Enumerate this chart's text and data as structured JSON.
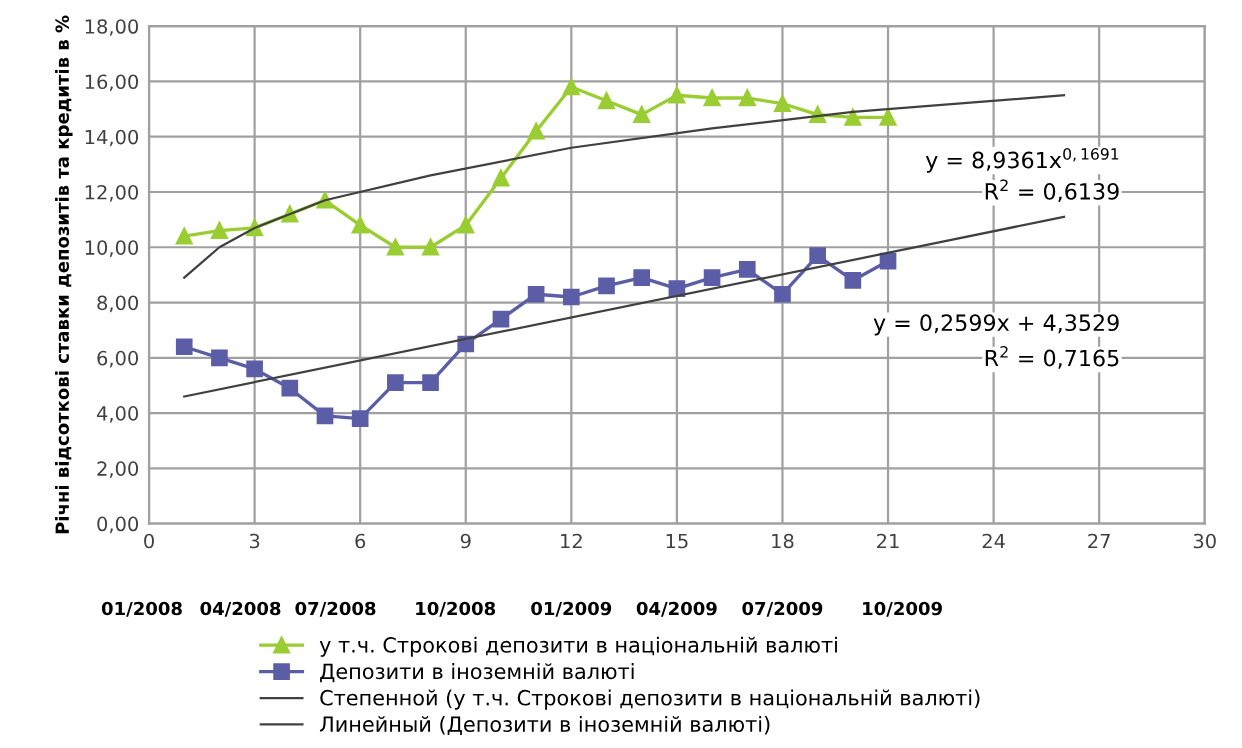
{
  "chart_data": {
    "type": "line",
    "ylabel": "Річні відсоткові ставки депозитів та кредитів в %",
    "series": [
      {
        "name": "у т.ч. Строкові депозити в національній валюті",
        "color": "#9acd32",
        "marker": "triangle",
        "x": [
          1,
          2,
          3,
          4,
          5,
          6,
          7,
          8,
          9,
          10,
          11,
          12,
          13,
          14,
          15,
          16,
          17,
          18,
          19,
          20,
          21
        ],
        "values": [
          10.4,
          10.6,
          10.7,
          11.2,
          11.7,
          10.8,
          10.0,
          10.0,
          10.8,
          12.5,
          14.2,
          15.8,
          15.3,
          14.8,
          15.5,
          15.4,
          15.4,
          15.2,
          14.8,
          14.7,
          14.7
        ]
      },
      {
        "name": "Депозити в іноземній валюті",
        "color": "#5b5ea6",
        "marker": "square",
        "x": [
          1,
          2,
          3,
          4,
          5,
          6,
          7,
          8,
          9,
          10,
          11,
          12,
          13,
          14,
          15,
          16,
          17,
          18,
          19,
          20,
          21
        ],
        "values": [
          6.4,
          6.0,
          5.6,
          4.9,
          3.9,
          3.8,
          5.1,
          5.1,
          6.5,
          7.4,
          8.3,
          8.2,
          8.6,
          8.9,
          8.5,
          8.9,
          9.2,
          8.3,
          9.7,
          8.8,
          9.5
        ]
      },
      {
        "name": "Степенной (у т.ч. Строкові депозити в національній валюті)",
        "color": "#404040",
        "marker": "none",
        "x": [
          1,
          2,
          3,
          5,
          8,
          12,
          16,
          20,
          26
        ],
        "values": [
          8.9,
          10.0,
          10.7,
          11.7,
          12.6,
          13.6,
          14.3,
          14.9,
          15.5
        ]
      },
      {
        "name": "Линейный (Депозити в іноземній валюті)",
        "color": "#404040",
        "marker": "none",
        "x": [
          1,
          26
        ],
        "values": [
          4.6,
          11.1
        ]
      }
    ],
    "xlim": [
      0,
      30
    ],
    "xticks": [
      0,
      3,
      6,
      9,
      12,
      15,
      18,
      21,
      24,
      27,
      30
    ],
    "ylim": [
      0,
      18
    ],
    "yticks": [
      {
        "value": 0,
        "label": "0,00"
      },
      {
        "value": 2,
        "label": "2,00"
      },
      {
        "value": 4,
        "label": "4,00"
      },
      {
        "value": 6,
        "label": "6,00"
      },
      {
        "value": 8,
        "label": "8,00"
      },
      {
        "value": 10,
        "label": "10,00"
      },
      {
        "value": 12,
        "label": "12,00"
      },
      {
        "value": 14,
        "label": "14,00"
      },
      {
        "value": 16,
        "label": "16,00"
      },
      {
        "value": 18,
        "label": "18,00"
      }
    ],
    "grid": true,
    "legend": "bottom",
    "annotations": [
      "01/2008",
      "04/2008",
      "07/2008",
      "10/2008",
      "01/2009",
      "04/2009",
      "07/2009",
      "10/2009",
      "y = 8,9361x$^{0,1691}$",
      "R$^{2}$ = 0,6139",
      "y = 0,2599x + 4,3529",
      "R$^{2}$ = 0,7165"
    ]
  }
}
